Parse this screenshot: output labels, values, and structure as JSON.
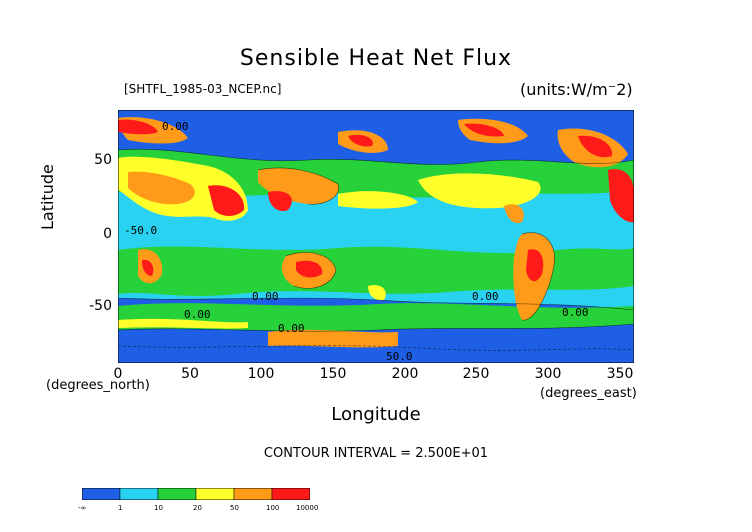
{
  "chart": {
    "title": "Sensible Heat Net Flux",
    "subtitle": "[SHTFL_1985-03_NCEP.nc]",
    "units": "(units:W/m^2)",
    "contour_interval": "CONTOUR INTERVAL = 2.500E+01",
    "xlabel": "Longitude",
    "ylabel": "Latitude",
    "x_coord_name": "(degrees_east)",
    "y_coord_name": "(degrees_north)"
  },
  "chart_data": {
    "type": "heatmap",
    "title": "Sensible Heat Net Flux",
    "xlabel": "Longitude",
    "ylabel": "Latitude",
    "xlim": [
      0,
      360
    ],
    "ylim": [
      -90,
      90
    ],
    "x_ticks": [
      "0",
      "50",
      "100",
      "150",
      "200",
      "250",
      "300",
      "350"
    ],
    "y_ticks": [
      "50",
      "0",
      "-50"
    ],
    "contour_labels": [
      "0.00",
      "50.0",
      "-50.0"
    ],
    "colorbar": {
      "labels": [
        "-∞",
        "1",
        "10",
        "20",
        "50",
        "100",
        "10000"
      ],
      "colors": [
        "#1f5fe6",
        "#2ad2f2",
        "#26d13a",
        "#ffff2a",
        "#ff9b18",
        "#ff1a1a"
      ]
    }
  }
}
